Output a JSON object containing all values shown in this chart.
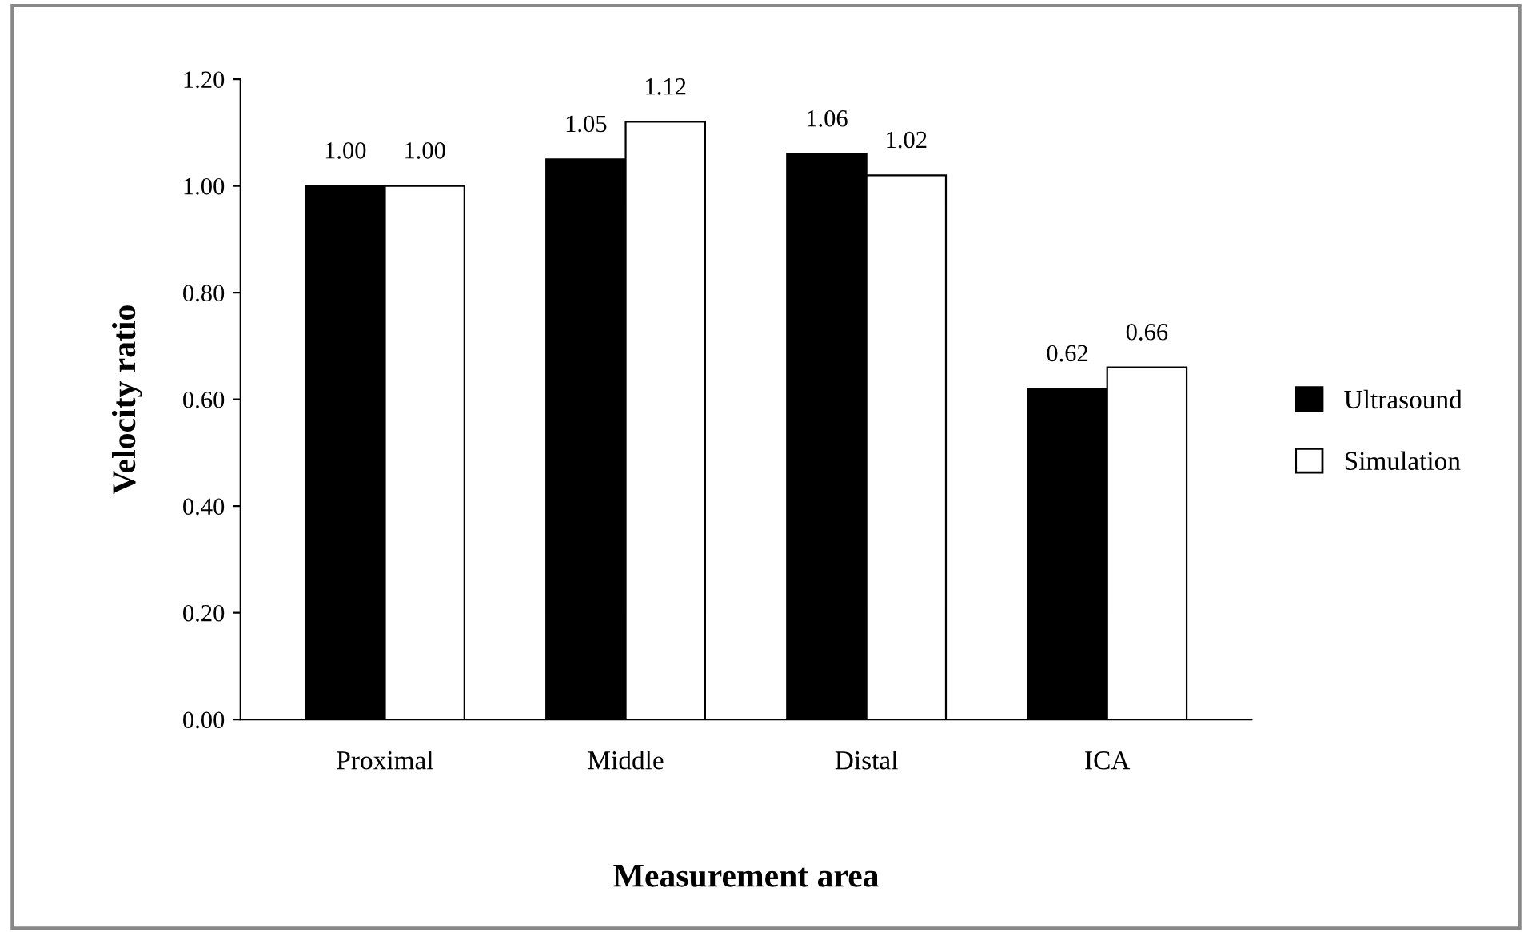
{
  "chart_data": {
    "type": "bar",
    "xlabel": "Measurement area",
    "ylabel": "Velocity ratio",
    "categories": [
      "Proximal",
      "Middle",
      "Distal",
      "ICA"
    ],
    "series": [
      {
        "name": "Ultrasound",
        "color": "#000000",
        "values": [
          1.0,
          1.05,
          1.06,
          0.62
        ],
        "value_labels": [
          "1.00",
          "1.05",
          "1.06",
          "0.62"
        ]
      },
      {
        "name": "Simulation",
        "color": "#ffffff",
        "values": [
          1.0,
          1.12,
          1.02,
          0.66
        ],
        "value_labels": [
          "1.00",
          "1.12",
          "1.02",
          "0.66"
        ]
      }
    ],
    "ylim": [
      0,
      1.2
    ],
    "yticks": [
      {
        "value": 0,
        "label": "0.00"
      },
      {
        "value": 0.2,
        "label": "0.20"
      },
      {
        "value": 0.4,
        "label": "0.40"
      },
      {
        "value": 0.6,
        "label": "0.60"
      },
      {
        "value": 0.8,
        "label": "0.80"
      },
      {
        "value": 1.0,
        "label": "1.00"
      },
      {
        "value": 1.2,
        "label": "1.20"
      }
    ],
    "grid": false,
    "legend": "right"
  }
}
